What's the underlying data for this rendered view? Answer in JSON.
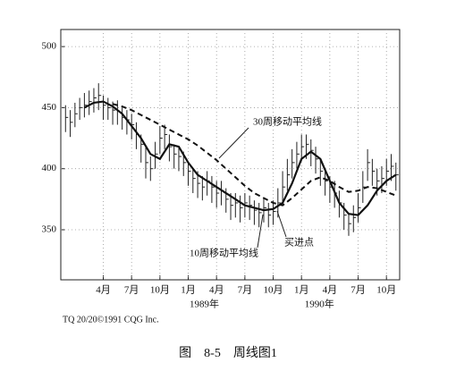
{
  "chart_data": {
    "type": "ohlc",
    "color": "#222222",
    "x": [
      -1,
      -0.5,
      0,
      0.5,
      1,
      1.5,
      2,
      2.5,
      3,
      3.5,
      4,
      4.5,
      5,
      5.5,
      6,
      6.5,
      7,
      7.5,
      8,
      8.5,
      9,
      9.5,
      10,
      10.5,
      11,
      11.5,
      12,
      12.5,
      13,
      13.5,
      14,
      14.5,
      15,
      15.5,
      16,
      16.5,
      17,
      17.5,
      18,
      18.5,
      19,
      19.5,
      20,
      20.5,
      21,
      21.5,
      22,
      22.5,
      23,
      23.5,
      24,
      24.5,
      25,
      25.5,
      26,
      26.5,
      27,
      27.5,
      28,
      28.5,
      29,
      29.5,
      30,
      30.5,
      31,
      31.5,
      32,
      32.5,
      33,
      33.5,
      34
    ],
    "high": [
      452,
      448,
      454,
      458,
      462,
      464,
      466,
      470,
      460,
      458,
      455,
      456,
      450,
      448,
      445,
      438,
      428,
      418,
      410,
      422,
      435,
      436,
      428,
      420,
      418,
      414,
      406,
      400,
      398,
      394,
      398,
      394,
      390,
      390,
      384,
      380,
      380,
      378,
      380,
      378,
      374,
      372,
      376,
      372,
      374,
      384,
      398,
      408,
      416,
      422,
      428,
      428,
      424,
      418,
      408,
      400,
      394,
      390,
      382,
      372,
      364,
      370,
      380,
      398,
      416,
      408,
      400,
      402,
      408,
      412,
      405
    ],
    "low": [
      430,
      426,
      434,
      440,
      442,
      444,
      446,
      448,
      440,
      440,
      436,
      436,
      432,
      428,
      424,
      416,
      405,
      392,
      390,
      400,
      412,
      416,
      406,
      400,
      398,
      394,
      386,
      380,
      376,
      374,
      378,
      372,
      368,
      370,
      364,
      358,
      360,
      356,
      360,
      358,
      354,
      352,
      356,
      352,
      354,
      360,
      372,
      382,
      392,
      400,
      406,
      408,
      402,
      396,
      386,
      378,
      372,
      368,
      360,
      350,
      345,
      348,
      356,
      372,
      390,
      386,
      378,
      380,
      386,
      390,
      382
    ],
    "close": [
      442,
      438,
      445,
      450,
      452,
      455,
      458,
      460,
      452,
      450,
      448,
      447,
      442,
      440,
      436,
      428,
      420,
      405,
      400,
      412,
      425,
      428,
      418,
      412,
      410,
      405,
      398,
      392,
      388,
      385,
      390,
      385,
      380,
      382,
      375,
      370,
      372,
      368,
      372,
      370,
      366,
      364,
      368,
      362,
      365,
      372,
      385,
      395,
      405,
      412,
      418,
      420,
      415,
      408,
      398,
      390,
      385,
      380,
      372,
      362,
      355,
      360,
      368,
      385,
      405,
      398,
      390,
      392,
      398,
      402,
      395
    ],
    "lines": [
      {
        "style": "solid",
        "x": [
          1,
          2,
          3,
          4,
          5,
          6,
          7,
          8,
          9,
          10,
          11,
          12,
          13,
          14,
          15,
          16,
          17,
          18,
          19,
          20,
          21,
          22,
          23,
          24,
          25,
          26,
          27,
          28,
          29,
          30,
          31,
          32,
          33,
          34
        ],
        "values": [
          450,
          454,
          455,
          451,
          445,
          435,
          425,
          412,
          408,
          420,
          418,
          405,
          395,
          390,
          385,
          380,
          375,
          370,
          368,
          366,
          367,
          372,
          388,
          408,
          414,
          408,
          390,
          372,
          363,
          362,
          370,
          382,
          390,
          395
        ]
      },
      {
        "style": "dashed",
        "x": [
          4,
          5,
          6,
          7,
          8,
          9,
          10,
          11,
          12,
          13,
          14,
          15,
          16,
          17,
          18,
          19,
          20,
          21,
          22,
          23,
          24,
          25,
          26,
          27,
          28,
          29,
          30,
          31,
          32,
          33,
          34
        ],
        "values": [
          453,
          451,
          448,
          444,
          440,
          436,
          432,
          428,
          424,
          419,
          413,
          407,
          400,
          393,
          386,
          380,
          376,
          372,
          370,
          376,
          383,
          390,
          393,
          390,
          385,
          381,
          382,
          385,
          384,
          381,
          378
        ]
      }
    ],
    "xlim": [
      -1.5,
      34.4
    ],
    "ylim": [
      309,
      514
    ],
    "yticks": [
      350,
      400,
      450,
      500
    ],
    "xticks": [
      {
        "value": 3,
        "label": "4月"
      },
      {
        "value": 6,
        "label": "7月"
      },
      {
        "value": 9,
        "label": "10月"
      },
      {
        "value": 12,
        "label": "1月"
      },
      {
        "value": 15,
        "label": "4月"
      },
      {
        "value": 18,
        "label": "7月"
      },
      {
        "value": 21,
        "label": "10月"
      },
      {
        "value": 24,
        "label": "1月"
      },
      {
        "value": 27,
        "label": "4月"
      },
      {
        "value": 30,
        "label": "7月"
      },
      {
        "value": 33,
        "label": "10月"
      }
    ],
    "year_ticks": [
      {
        "value": 13.7,
        "label": "1989年"
      },
      {
        "value": 25.9,
        "label": "1990年"
      }
    ],
    "grid": true,
    "annotations": [
      "30周移动平均线",
      "10周移动平均线",
      "买进点"
    ],
    "credit": "TQ 20/20©1991 CQG Inc.",
    "caption": "图　8-5　周线图1"
  }
}
